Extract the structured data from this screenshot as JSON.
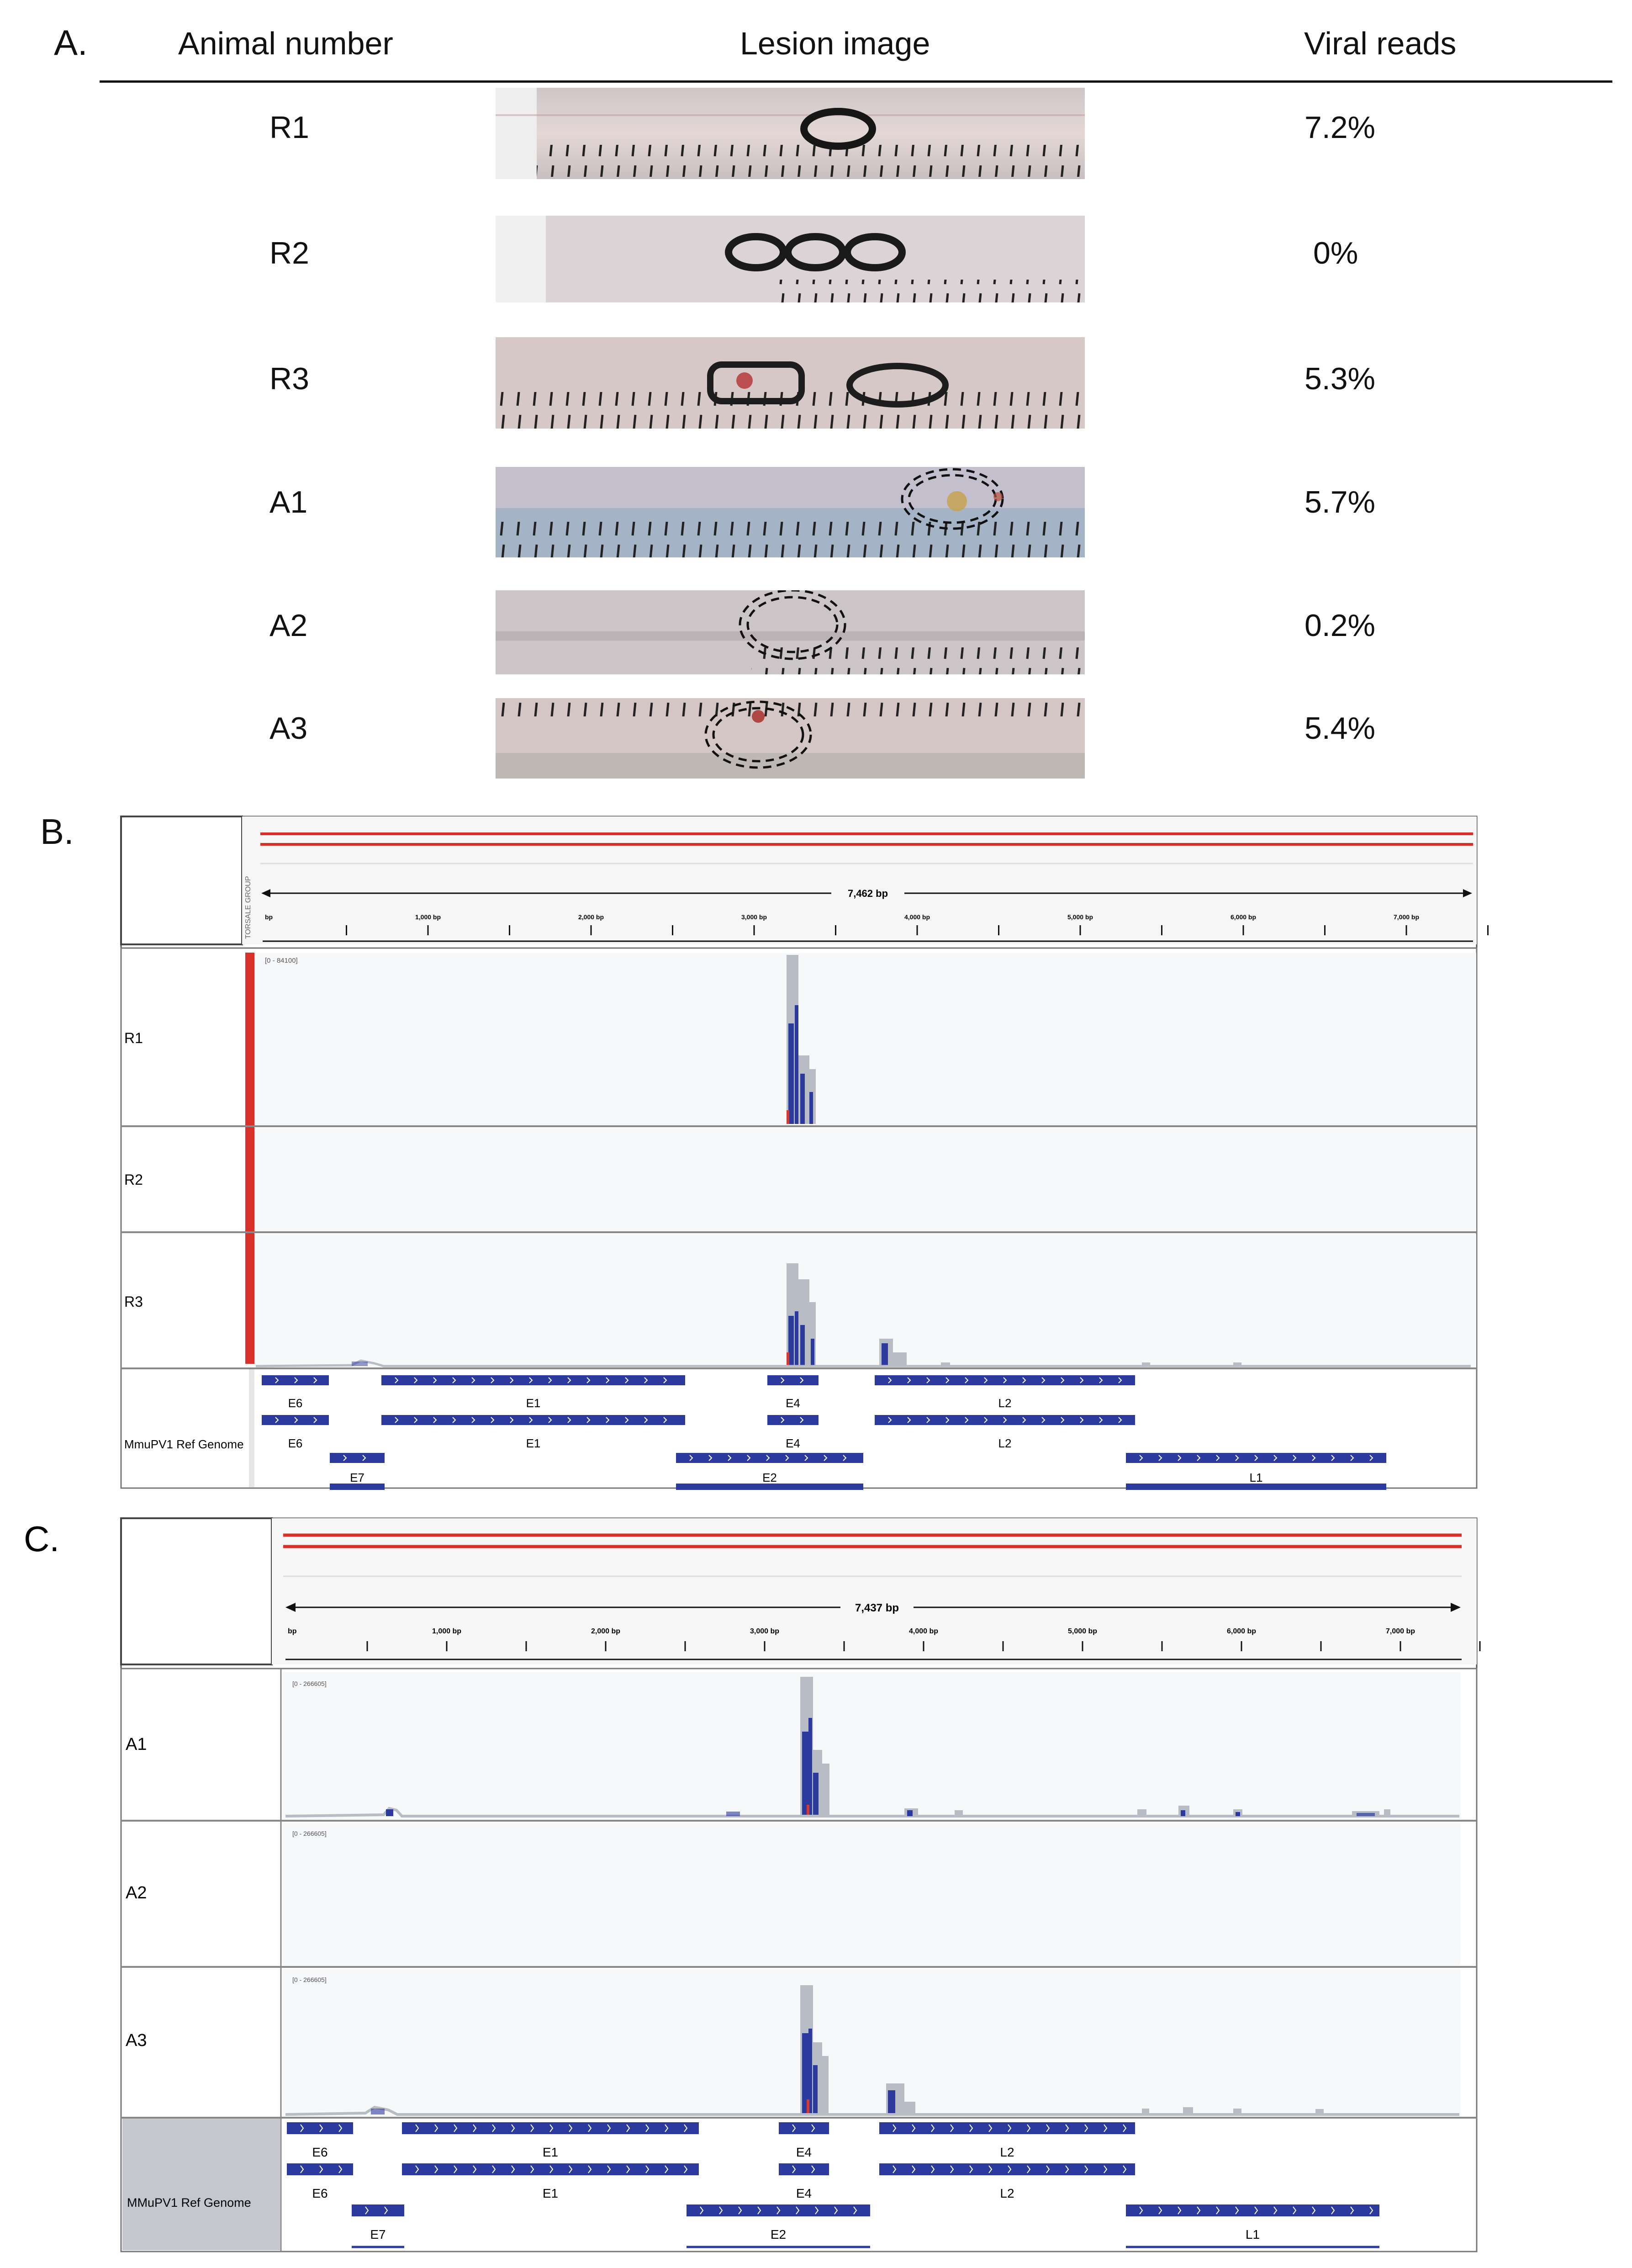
{
  "panel_a": {
    "letter": "A.",
    "headers": {
      "animal": "Animal number",
      "lesion": "Lesion image",
      "reads": "Viral reads"
    },
    "rows": [
      {
        "animal": "R1",
        "reads": "7.2%"
      },
      {
        "animal": "R2",
        "reads": "0%"
      },
      {
        "animal": "R3",
        "reads": "5.3%"
      },
      {
        "animal": "A1",
        "reads": "5.7%"
      },
      {
        "animal": "A2",
        "reads": "0.2%"
      },
      {
        "animal": "A3",
        "reads": "5.4%"
      }
    ]
  },
  "panel_b": {
    "letter": "B.",
    "genome_length": "7,462 bp",
    "side_label": "TORSALE GROUP",
    "ticks": [
      "bp",
      "1,000 bp",
      "2,000 bp",
      "3,000 bp",
      "4,000 bp",
      "5,000 bp",
      "6,000 bp",
      "7,000 bp"
    ],
    "range": "[0 - 84100]",
    "tracks": [
      "R1",
      "R2",
      "R3"
    ],
    "ref_label": "MmuPV1 Ref Genome"
  },
  "panel_c": {
    "letter": "C.",
    "genome_length": "7,437 bp",
    "ticks": [
      "bp",
      "1,000 bp",
      "2,000 bp",
      "3,000 bp",
      "4,000 bp",
      "5,000 bp",
      "6,000 bp",
      "7,000 bp"
    ],
    "range": "[0 - 266605]",
    "tracks": [
      "A1",
      "A2",
      "A3"
    ],
    "ref_label": "MMuPV1 Ref Genome"
  },
  "genes": {
    "row1": [
      "E6",
      "E1",
      "E4",
      "L2"
    ],
    "row2": [
      "E6",
      "E1",
      "E4",
      "L2"
    ],
    "row3": [
      "E7",
      "E2",
      "L1"
    ]
  },
  "colors": {
    "feature": "#2b3a9c",
    "coverage": "#b8bcc4",
    "mismatch": "#d63a2f",
    "redline": "#d9302a"
  }
}
